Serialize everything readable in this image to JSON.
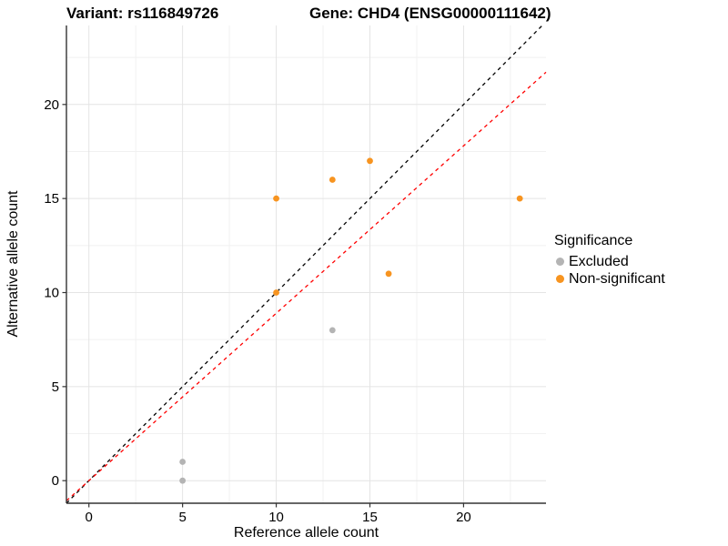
{
  "chart_data": {
    "type": "scatter",
    "title_variant": "Variant: rs116849726",
    "title_gene": "Gene: CHD4 (ENSG00000111642)",
    "xlabel": "Reference allele count",
    "ylabel": "Alternative allele count",
    "xlim": [
      -1.2,
      24.4
    ],
    "ylim": [
      -1.2,
      24.2
    ],
    "xticks": [
      0,
      5,
      10,
      15,
      20
    ],
    "yticks": [
      0,
      5,
      10,
      15,
      20
    ],
    "xminor": [
      2.5,
      7.5,
      12.5,
      17.5,
      22.5
    ],
    "yminor": [
      2.5,
      7.5,
      12.5,
      17.5,
      22.5
    ],
    "grid": true,
    "legend_position": "right",
    "series": [
      {
        "name": "Excluded",
        "color": "#b4b4b4",
        "points": [
          [
            5,
            0
          ],
          [
            5,
            1
          ],
          [
            13,
            8
          ]
        ]
      },
      {
        "name": "Non-significant",
        "color": "#f79420",
        "points": [
          [
            10,
            10
          ],
          [
            10,
            15
          ],
          [
            13,
            16
          ],
          [
            15,
            17
          ],
          [
            16,
            11
          ],
          [
            23,
            15
          ]
        ]
      }
    ],
    "lines": [
      {
        "name": "identity",
        "color": "#000000",
        "dash": "dashed",
        "slope": 1,
        "intercept": 0
      },
      {
        "name": "expected-ratio",
        "color": "#ff0000",
        "dash": "dashed",
        "slope": 0.89,
        "intercept": 0
      }
    ],
    "colors": {
      "axis": "#333333",
      "grid_major": "#e4e4e4",
      "grid_minor": "#f1f1f1",
      "tick_text": "#000000"
    }
  },
  "legend": {
    "title": "Significance",
    "items": [
      {
        "label": "Excluded",
        "color": "#b4b4b4"
      },
      {
        "label": "Non-significant",
        "color": "#f79420"
      }
    ]
  }
}
